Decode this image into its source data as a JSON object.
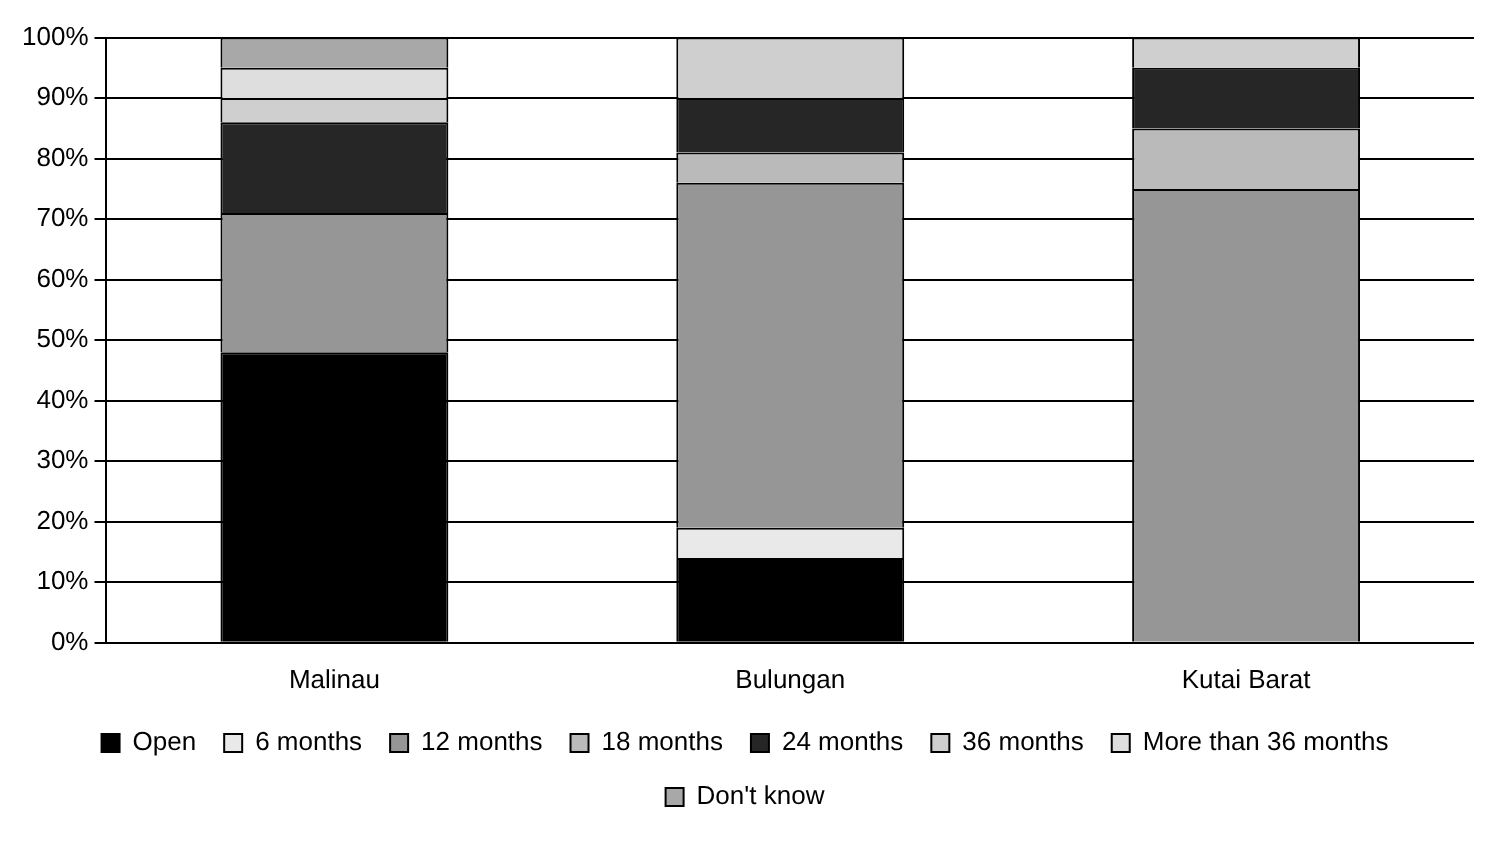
{
  "chart_data": {
    "type": "bar",
    "stacked": true,
    "categories": [
      "Malinau",
      "Bulungan",
      "Kutai Barat"
    ],
    "series": [
      {
        "name": "Open",
        "color": "#000000",
        "values": [
          48,
          14,
          0
        ]
      },
      {
        "name": "6 months",
        "color": "#e9e9e9",
        "values": [
          0,
          5,
          0
        ]
      },
      {
        "name": "12 months",
        "color": "#969696",
        "values": [
          23,
          57,
          75
        ]
      },
      {
        "name": "18 months",
        "color": "#bababa",
        "values": [
          0,
          5,
          10
        ]
      },
      {
        "name": "24 months",
        "color": "#262626",
        "values": [
          15,
          9,
          10
        ]
      },
      {
        "name": "36 months",
        "color": "#cfcfcf",
        "values": [
          4,
          10,
          5
        ]
      },
      {
        "name": "More than 36 months",
        "color": "#dedede",
        "values": [
          5,
          0,
          0
        ]
      },
      {
        "name": "Don't know",
        "color": "#a8a8a8",
        "values": [
          5,
          0,
          0
        ]
      }
    ],
    "ylim": [
      0,
      100
    ],
    "yticks": [
      {
        "value": 0,
        "label": "0%"
      },
      {
        "value": 10,
        "label": "10%"
      },
      {
        "value": 20,
        "label": "20%"
      },
      {
        "value": 30,
        "label": "30%"
      },
      {
        "value": 40,
        "label": "40%"
      },
      {
        "value": 50,
        "label": "50%"
      },
      {
        "value": 60,
        "label": "60%"
      },
      {
        "value": 70,
        "label": "70%"
      },
      {
        "value": 80,
        "label": "80%"
      },
      {
        "value": 90,
        "label": "90%"
      },
      {
        "value": 100,
        "label": "100%"
      }
    ],
    "grid": "y",
    "legend": "bottom"
  }
}
